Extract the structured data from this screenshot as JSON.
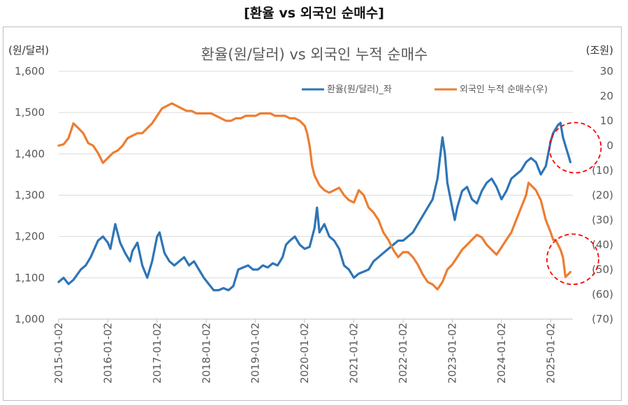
{
  "outer_title": "[환율 vs 외국인 순매수]",
  "chart_data": {
    "type": "line",
    "title": "환율(원/달러) vs 외국인 누적 순매수",
    "ylabel_left": "(원/달러)",
    "ylabel_right": "(조원)",
    "ylim_left": [
      1000,
      1600
    ],
    "ylim_right": [
      -70,
      30
    ],
    "yticks_left": [
      "1,600",
      "1,500",
      "1,400",
      "1,300",
      "1,200",
      "1,100",
      "1,000"
    ],
    "yticks_right": [
      "30",
      "20",
      "10",
      "0",
      "(10)",
      "(20)",
      "(30)",
      "(40)",
      "(50)",
      "(60)",
      "(70)"
    ],
    "x_ticks": [
      "2015-01-02",
      "2016-01-02",
      "2017-01-02",
      "2018-01-02",
      "2019-01-02",
      "2020-01-02",
      "2021-01-02",
      "2022-01-02",
      "2023-01-02",
      "2024-01-02",
      "2025-01-02"
    ],
    "x_range": [
      2015.0,
      2025.45
    ],
    "series": [
      {
        "name": "환율(원/달러)_좌",
        "axis": "left",
        "color": "#2e75b6",
        "x": [
          2015.0,
          2015.1,
          2015.2,
          2015.3,
          2015.45,
          2015.55,
          2015.65,
          2015.8,
          2015.9,
          2016.0,
          2016.05,
          2016.1,
          2016.15,
          2016.25,
          2016.35,
          2016.45,
          2016.5,
          2016.6,
          2016.7,
          2016.8,
          2016.9,
          2017.0,
          2017.05,
          2017.15,
          2017.25,
          2017.35,
          2017.45,
          2017.55,
          2017.65,
          2017.75,
          2017.85,
          2017.95,
          2018.05,
          2018.15,
          2018.25,
          2018.35,
          2018.45,
          2018.55,
          2018.65,
          2018.75,
          2018.85,
          2018.95,
          2019.05,
          2019.15,
          2019.25,
          2019.35,
          2019.45,
          2019.55,
          2019.62,
          2019.7,
          2019.8,
          2019.9,
          2020.0,
          2020.1,
          2020.2,
          2020.25,
          2020.3,
          2020.4,
          2020.5,
          2020.6,
          2020.7,
          2020.8,
          2020.9,
          2021.0,
          2021.1,
          2021.2,
          2021.3,
          2021.4,
          2021.5,
          2021.6,
          2021.7,
          2021.8,
          2021.9,
          2022.0,
          2022.1,
          2022.2,
          2022.3,
          2022.4,
          2022.5,
          2022.6,
          2022.7,
          2022.75,
          2022.8,
          2022.85,
          2022.9,
          2023.0,
          2023.05,
          2023.1,
          2023.2,
          2023.3,
          2023.4,
          2023.5,
          2023.6,
          2023.7,
          2023.8,
          2023.9,
          2024.0,
          2024.1,
          2024.2,
          2024.3,
          2024.4,
          2024.5,
          2024.6,
          2024.7,
          2024.8,
          2024.9,
          2024.95,
          2025.0,
          2025.05,
          2025.1,
          2025.15,
          2025.2,
          2025.25,
          2025.3,
          2025.35,
          2025.4
        ],
        "values": [
          1090,
          1100,
          1085,
          1095,
          1120,
          1130,
          1150,
          1190,
          1200,
          1185,
          1170,
          1200,
          1230,
          1185,
          1160,
          1140,
          1165,
          1185,
          1130,
          1100,
          1140,
          1200,
          1210,
          1160,
          1140,
          1130,
          1140,
          1150,
          1130,
          1140,
          1120,
          1100,
          1085,
          1070,
          1070,
          1075,
          1070,
          1080,
          1120,
          1125,
          1130,
          1120,
          1120,
          1130,
          1125,
          1135,
          1130,
          1150,
          1180,
          1190,
          1200,
          1180,
          1170,
          1175,
          1220,
          1270,
          1210,
          1230,
          1200,
          1190,
          1170,
          1130,
          1120,
          1100,
          1110,
          1115,
          1120,
          1140,
          1150,
          1160,
          1170,
          1180,
          1190,
          1190,
          1200,
          1210,
          1230,
          1250,
          1270,
          1290,
          1340,
          1390,
          1440,
          1400,
          1330,
          1270,
          1240,
          1270,
          1310,
          1320,
          1290,
          1280,
          1310,
          1330,
          1340,
          1320,
          1290,
          1310,
          1340,
          1350,
          1360,
          1380,
          1390,
          1380,
          1350,
          1370,
          1400,
          1430,
          1450,
          1460,
          1470,
          1475,
          1440,
          1420,
          1400,
          1380
        ]
      },
      {
        "name": "외국인 누적 순매수(우)",
        "axis": "right",
        "color": "#ed7d31",
        "x": [
          2015.0,
          2015.1,
          2015.2,
          2015.3,
          2015.4,
          2015.5,
          2015.6,
          2015.7,
          2015.8,
          2015.9,
          2016.0,
          2016.1,
          2016.2,
          2016.3,
          2016.4,
          2016.5,
          2016.6,
          2016.7,
          2016.8,
          2016.9,
          2017.0,
          2017.1,
          2017.2,
          2017.3,
          2017.4,
          2017.5,
          2017.6,
          2017.7,
          2017.8,
          2017.9,
          2018.0,
          2018.1,
          2018.2,
          2018.3,
          2018.4,
          2018.5,
          2018.6,
          2018.7,
          2018.8,
          2018.9,
          2019.0,
          2019.1,
          2019.2,
          2019.3,
          2019.4,
          2019.5,
          2019.6,
          2019.7,
          2019.8,
          2019.9,
          2020.0,
          2020.05,
          2020.1,
          2020.15,
          2020.2,
          2020.3,
          2020.4,
          2020.5,
          2020.6,
          2020.7,
          2020.8,
          2020.9,
          2021.0,
          2021.1,
          2021.2,
          2021.3,
          2021.4,
          2021.5,
          2021.6,
          2021.7,
          2021.8,
          2021.9,
          2022.0,
          2022.1,
          2022.2,
          2022.3,
          2022.4,
          2022.5,
          2022.6,
          2022.7,
          2022.8,
          2022.9,
          2023.0,
          2023.1,
          2023.2,
          2023.3,
          2023.4,
          2023.5,
          2023.6,
          2023.7,
          2023.8,
          2023.9,
          2024.0,
          2024.1,
          2024.2,
          2024.3,
          2024.4,
          2024.5,
          2024.55,
          2024.6,
          2024.7,
          2024.8,
          2024.9,
          2025.0,
          2025.05,
          2025.1,
          2025.15,
          2025.2,
          2025.25,
          2025.3,
          2025.35,
          2025.4
        ],
        "values": [
          0,
          0.5,
          3,
          9,
          7,
          5,
          1,
          0,
          -3,
          -7,
          -5,
          -3,
          -2,
          0,
          3,
          4,
          5,
          5,
          7,
          9,
          12,
          15,
          16,
          17,
          16,
          15,
          14,
          14,
          13,
          13,
          13,
          13,
          12,
          11,
          10,
          10,
          11,
          11,
          12,
          12,
          12,
          13,
          13,
          13,
          12,
          12,
          12,
          11,
          11,
          10,
          8,
          5,
          0,
          -8,
          -12,
          -16,
          -18,
          -19,
          -18,
          -17,
          -20,
          -22,
          -23,
          -18,
          -20,
          -25,
          -27,
          -30,
          -35,
          -38,
          -42,
          -45,
          -43,
          -43,
          -45,
          -48,
          -52,
          -55,
          -56,
          -58,
          -55,
          -50,
          -48,
          -45,
          -42,
          -40,
          -38,
          -36,
          -37,
          -40,
          -42,
          -44,
          -41,
          -38,
          -35,
          -30,
          -25,
          -20,
          -15,
          -16,
          -18,
          -22,
          -30,
          -35,
          -38,
          -38,
          -40,
          -42,
          -45,
          -53,
          -52,
          -51
        ]
      }
    ],
    "annotations": [
      {
        "type": "dashed-circle",
        "color": "#ff0000",
        "target": "환율(원/달러)_좌",
        "x": 2025.3
      },
      {
        "type": "dashed-circle",
        "color": "#ff0000",
        "target": "외국인 누적 순매수(우)",
        "x": 2025.25
      }
    ]
  }
}
